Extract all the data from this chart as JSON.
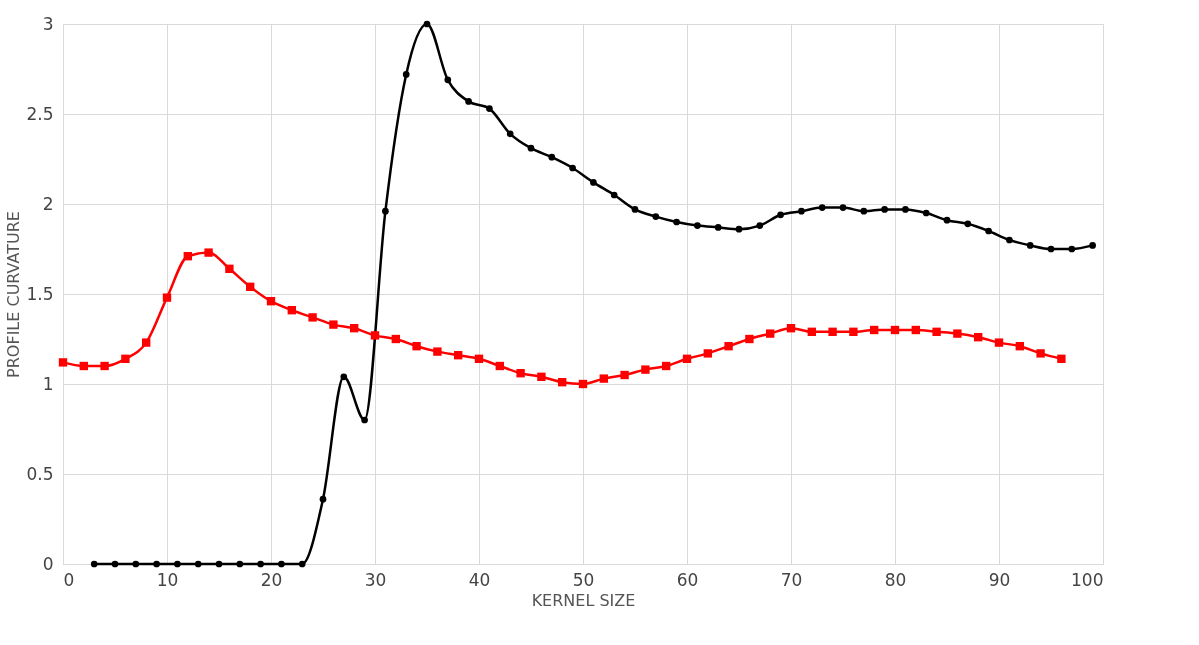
{
  "chart_data": {
    "type": "line",
    "xlabel": "KERNEL SIZE",
    "ylabel": "PROFILE CURVATURE",
    "xlim": [
      0,
      100
    ],
    "xticks": [
      0,
      10,
      20,
      30,
      40,
      50,
      60,
      70,
      80,
      90,
      100
    ],
    "ylim": [
      0,
      3
    ],
    "yticks": [
      0,
      0.5,
      1,
      1.5,
      2,
      2.5,
      3
    ],
    "grid": true,
    "series": [
      {
        "color": "#000000",
        "marker": "circle",
        "line_style": "solid",
        "x": [
          3,
          5,
          7,
          9,
          11,
          13,
          15,
          17,
          19,
          21,
          23,
          25,
          27,
          29,
          31,
          33,
          35,
          37,
          39,
          41,
          43,
          45,
          47,
          49,
          51,
          53,
          55,
          57,
          59,
          61,
          63,
          65,
          67,
          69,
          71,
          73,
          75,
          77,
          79,
          81,
          83,
          85,
          87,
          89,
          91,
          93,
          95,
          97,
          99
        ],
        "values": [
          0,
          0,
          0,
          0,
          0,
          0,
          0,
          0,
          0,
          0,
          0,
          0.36,
          1.04,
          0.8,
          1.96,
          2.72,
          3.0,
          2.69,
          2.57,
          2.53,
          2.39,
          2.31,
          2.26,
          2.2,
          2.12,
          2.05,
          1.97,
          1.93,
          1.9,
          1.88,
          1.87,
          1.86,
          1.88,
          1.94,
          1.96,
          1.98,
          1.98,
          1.96,
          1.97,
          1.97,
          1.95,
          1.91,
          1.89,
          1.85,
          1.8,
          1.77,
          1.75,
          1.75,
          1.77
        ]
      },
      {
        "color": "#ff0000",
        "marker": "square",
        "line_style": "solid",
        "x": [
          0,
          2,
          4,
          6,
          8,
          10,
          12,
          14,
          16,
          18,
          20,
          22,
          24,
          26,
          28,
          30,
          32,
          34,
          36,
          38,
          40,
          42,
          44,
          46,
          48,
          50,
          52,
          54,
          56,
          58,
          60,
          62,
          64,
          66,
          68,
          70,
          72,
          74,
          76,
          78,
          80,
          82,
          84,
          86,
          88,
          90,
          92,
          94,
          96
        ],
        "values": [
          1.12,
          1.1,
          1.1,
          1.14,
          1.23,
          1.48,
          1.71,
          1.73,
          1.64,
          1.54,
          1.46,
          1.41,
          1.37,
          1.33,
          1.31,
          1.27,
          1.25,
          1.21,
          1.18,
          1.16,
          1.14,
          1.1,
          1.06,
          1.04,
          1.01,
          1.0,
          1.03,
          1.05,
          1.08,
          1.1,
          1.14,
          1.17,
          1.21,
          1.25,
          1.28,
          1.31,
          1.29,
          1.29,
          1.29,
          1.3,
          1.3,
          1.3,
          1.29,
          1.28,
          1.26,
          1.23,
          1.21,
          1.17,
          1.14
        ]
      }
    ]
  }
}
